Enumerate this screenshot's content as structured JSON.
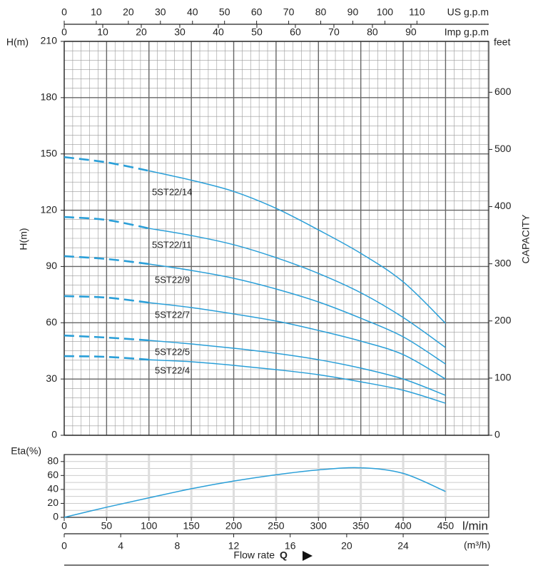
{
  "chart_data": [
    {
      "type": "line",
      "y_unit": "H(m)",
      "ylabel": "H(m)",
      "y2_unit": "feet",
      "y2label": "CAPACITY",
      "x": [
        0,
        50,
        100,
        150,
        200,
        250,
        300,
        350,
        400,
        450
      ],
      "xlim": [
        0,
        501
      ],
      "xticks": [
        0,
        50,
        100,
        150,
        200,
        250,
        300,
        350,
        400,
        450
      ],
      "xminor": [
        0,
        10,
        20,
        30,
        40,
        50,
        60,
        70,
        80,
        90,
        100,
        110,
        120,
        130,
        140,
        150,
        160,
        170,
        180,
        190,
        200,
        210,
        220,
        230,
        240,
        250,
        260,
        270,
        280,
        290,
        300,
        310,
        320,
        330,
        340,
        350,
        360,
        370,
        380,
        390,
        400,
        410,
        420,
        430,
        440,
        450,
        460,
        470,
        480,
        490,
        500
      ],
      "ylim": [
        0,
        210
      ],
      "yticks": [
        0,
        30,
        60,
        90,
        120,
        150,
        180,
        210
      ],
      "yminor": [
        0,
        5,
        10,
        15,
        20,
        25,
        30,
        35,
        40,
        45,
        50,
        55,
        60,
        65,
        70,
        75,
        80,
        85,
        90,
        95,
        100,
        105,
        110,
        115,
        120,
        125,
        130,
        135,
        140,
        145,
        150,
        155,
        160,
        165,
        170,
        175,
        180,
        185,
        190,
        195,
        200,
        205,
        210
      ],
      "y2lim": [
        0,
        689
      ],
      "y2ticks": [
        0,
        100,
        200,
        300,
        400,
        500,
        600
      ],
      "top_axes": [
        {
          "label": "US g.p.m",
          "lim": [
            0,
            132.4
          ],
          "ticks": [
            0,
            10,
            20,
            30,
            40,
            50,
            60,
            70,
            80,
            90,
            100,
            110
          ]
        },
        {
          "label": "Imp g.p.m",
          "lim": [
            0,
            110.2
          ],
          "ticks": [
            0,
            10,
            20,
            30,
            40,
            50,
            60,
            70,
            80,
            90
          ]
        }
      ],
      "dashed_xlim": [
        0,
        100
      ],
      "grid": true,
      "series": [
        {
          "name": "5ST22/14",
          "color": "#2a9fd8",
          "values": [
            148.3,
            145.5,
            141,
            136,
            130,
            121,
            109.5,
            97,
            81.8,
            59.7
          ]
        },
        {
          "name": "5ST22/11",
          "color": "#2a9fd8",
          "values": [
            116.4,
            114.8,
            110.3,
            106.5,
            101.6,
            94.7,
            86.3,
            76,
            62.8,
            46.8
          ]
        },
        {
          "name": "5ST22/9",
          "color": "#2a9fd8",
          "values": [
            95.5,
            94,
            91.3,
            87.9,
            83.7,
            78,
            71.1,
            62.4,
            52.5,
            38
          ]
        },
        {
          "name": "5ST22/7",
          "color": "#2a9fd8",
          "values": [
            74.2,
            73.4,
            70.7,
            68.1,
            64.7,
            60.9,
            55.9,
            50.2,
            43,
            30
          ]
        },
        {
          "name": "5ST22/5",
          "color": "#2a9fd8",
          "values": [
            53.2,
            52.1,
            50.6,
            48.7,
            46.4,
            43.7,
            40.3,
            35.8,
            30,
            21.3
          ]
        },
        {
          "name": "5ST22/4",
          "color": "#2a9fd8",
          "values": [
            42.2,
            41.8,
            40.3,
            39.2,
            37.3,
            35,
            32.3,
            28.5,
            24,
            17.1
          ]
        }
      ]
    },
    {
      "type": "line",
      "ylabel": "Eta(%)",
      "x": [
        0,
        50,
        100,
        150,
        200,
        250,
        300,
        350,
        400,
        450
      ],
      "values": [
        0,
        14.5,
        28,
        41,
        52,
        61,
        68,
        71,
        63,
        37
      ],
      "color": "#2a9fd8",
      "xlim": [
        0,
        501
      ],
      "xticks": [
        0,
        50,
        100,
        150,
        200,
        250,
        300,
        350,
        400,
        450
      ],
      "x_unit": "l/min",
      "ylim": [
        0,
        90
      ],
      "yticks": [
        0,
        20,
        40,
        60,
        80
      ],
      "yminor": [
        0,
        10,
        20,
        30,
        40,
        50,
        60,
        70,
        80,
        90
      ],
      "bottom_axis": {
        "label": "(m³/h)",
        "lim": [
          0,
          30.06
        ],
        "ticks": [
          0,
          4,
          8,
          12,
          16,
          20,
          24
        ]
      },
      "x_title": "Flow rate",
      "x_symbol": "Q",
      "grid": true
    }
  ]
}
